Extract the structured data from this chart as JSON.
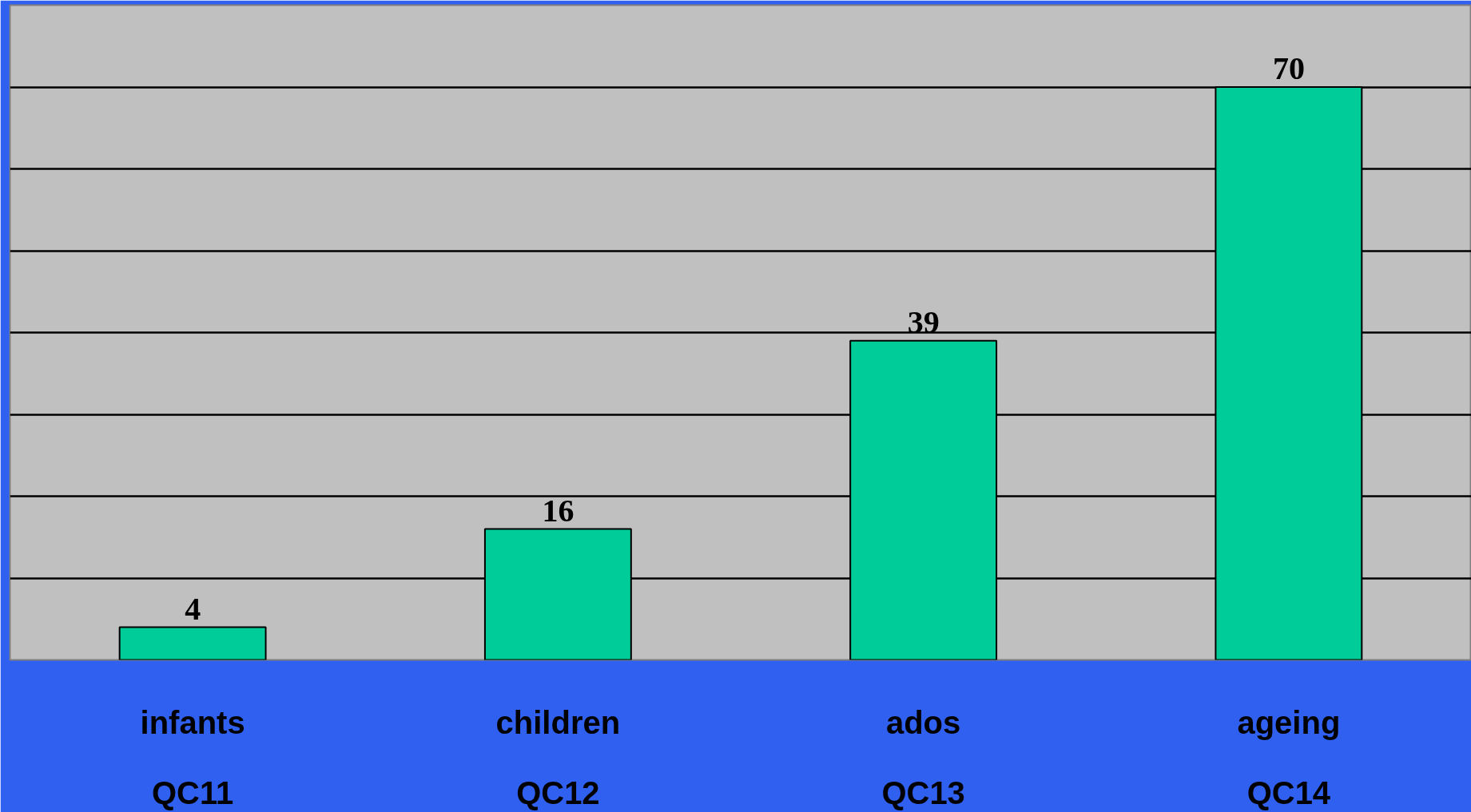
{
  "chart_data": {
    "type": "bar",
    "categories": [
      "infants\n\nQC11",
      "children\n\nQC12",
      "ados\n\nQC13",
      "ageing\n\nQC14"
    ],
    "values": [
      4,
      16,
      39,
      70
    ],
    "color": "#00cc99",
    "data_labels": true,
    "ylim": [
      0,
      80
    ],
    "yticks": [
      {
        "value": 10,
        "label": null
      },
      {
        "value": 20,
        "label": null
      },
      {
        "value": 30,
        "label": null
      },
      {
        "value": 40,
        "label": null
      },
      {
        "value": 50,
        "label": null
      },
      {
        "value": 60,
        "label": null
      },
      {
        "value": 70,
        "label": null
      }
    ],
    "grid": "y",
    "tick_labels": "x"
  }
}
